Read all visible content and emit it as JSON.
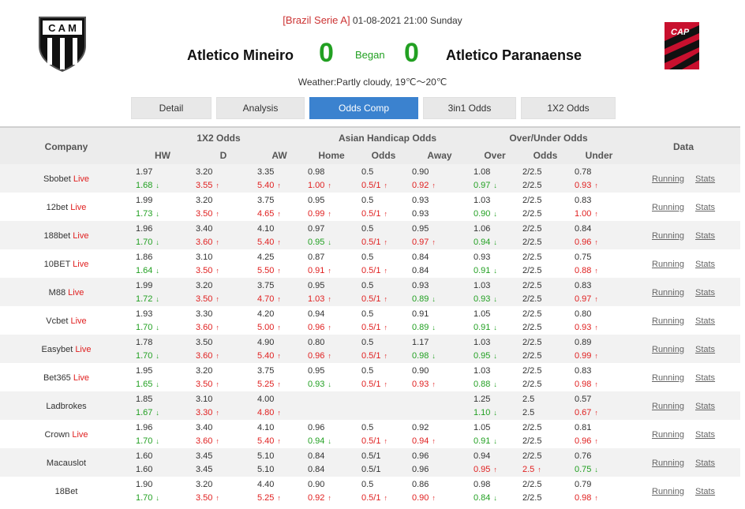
{
  "match": {
    "league": "[Brazil Serie A]",
    "datetime": "01-08-2021 21:00 Sunday",
    "home_team": "Atletico Mineiro",
    "away_team": "Atletico Paranaense",
    "home_score": "0",
    "away_score": "0",
    "status": "Began",
    "weather": "Weather:Partly cloudy, 19℃～20℃",
    "home_logo_text": "C A M",
    "away_logo_text": "CAP"
  },
  "tabs": [
    {
      "label": "Detail",
      "active": false
    },
    {
      "label": "Analysis",
      "active": false
    },
    {
      "label": "Odds Comp",
      "active": true
    },
    {
      "label": "3in1 Odds",
      "active": false
    },
    {
      "label": "1X2 Odds",
      "active": false
    }
  ],
  "table": {
    "company_header": "Company",
    "group_1x2": "1X2 Odds",
    "group_ah": "Asian Handicap Odds",
    "group_ou": "Over/Under Odds",
    "data_header": "Data",
    "sub": {
      "hw": "HW",
      "d": "D",
      "aw": "AW",
      "home": "Home",
      "ah_odds": "Odds",
      "away": "Away",
      "over": "Over",
      "ou_odds": "Odds",
      "under": "Under"
    },
    "running_label": "Running",
    "stats_label": "Stats",
    "live_label": "Live"
  },
  "colors": {
    "up": "#e02020",
    "down": "#22a022",
    "tab_active": "#3b82cf"
  },
  "rows": [
    {
      "company": "Sbobet",
      "live": true,
      "a": [
        "1.97",
        "3.20",
        "3.35",
        "0.98",
        "0.5",
        "0.90",
        "1.08",
        "2/2.5",
        "0.78"
      ],
      "b": [
        [
          "1.68",
          "down"
        ],
        [
          "3.55",
          "up"
        ],
        [
          "5.40",
          "up"
        ],
        [
          "1.00",
          "up"
        ],
        [
          "0.5/1",
          "up"
        ],
        [
          "0.92",
          "up"
        ],
        [
          "0.97",
          "down"
        ],
        [
          "2/2.5",
          ""
        ],
        [
          "0.93",
          "up"
        ]
      ]
    },
    {
      "company": "12bet",
      "live": true,
      "a": [
        "1.99",
        "3.20",
        "3.75",
        "0.95",
        "0.5",
        "0.93",
        "1.03",
        "2/2.5",
        "0.83"
      ],
      "b": [
        [
          "1.73",
          "down"
        ],
        [
          "3.50",
          "up"
        ],
        [
          "4.65",
          "up"
        ],
        [
          "0.99",
          "up"
        ],
        [
          "0.5/1",
          "up"
        ],
        [
          "0.93",
          ""
        ],
        [
          "0.90",
          "down"
        ],
        [
          "2/2.5",
          ""
        ],
        [
          "1.00",
          "up"
        ]
      ]
    },
    {
      "company": "188bet",
      "live": true,
      "a": [
        "1.96",
        "3.40",
        "4.10",
        "0.97",
        "0.5",
        "0.95",
        "1.06",
        "2/2.5",
        "0.84"
      ],
      "b": [
        [
          "1.70",
          "down"
        ],
        [
          "3.60",
          "up"
        ],
        [
          "5.40",
          "up"
        ],
        [
          "0.95",
          "down"
        ],
        [
          "0.5/1",
          "up"
        ],
        [
          "0.97",
          "up"
        ],
        [
          "0.94",
          "down"
        ],
        [
          "2/2.5",
          ""
        ],
        [
          "0.96",
          "up"
        ]
      ]
    },
    {
      "company": "10BET",
      "live": true,
      "a": [
        "1.86",
        "3.10",
        "4.25",
        "0.87",
        "0.5",
        "0.84",
        "0.93",
        "2/2.5",
        "0.75"
      ],
      "b": [
        [
          "1.64",
          "down"
        ],
        [
          "3.50",
          "up"
        ],
        [
          "5.50",
          "up"
        ],
        [
          "0.91",
          "up"
        ],
        [
          "0.5/1",
          "up"
        ],
        [
          "0.84",
          ""
        ],
        [
          "0.91",
          "down"
        ],
        [
          "2/2.5",
          ""
        ],
        [
          "0.88",
          "up"
        ]
      ]
    },
    {
      "company": "M88",
      "live": true,
      "a": [
        "1.99",
        "3.20",
        "3.75",
        "0.95",
        "0.5",
        "0.93",
        "1.03",
        "2/2.5",
        "0.83"
      ],
      "b": [
        [
          "1.72",
          "down"
        ],
        [
          "3.50",
          "up"
        ],
        [
          "4.70",
          "up"
        ],
        [
          "1.03",
          "up"
        ],
        [
          "0.5/1",
          "up"
        ],
        [
          "0.89",
          "down"
        ],
        [
          "0.93",
          "down"
        ],
        [
          "2/2.5",
          ""
        ],
        [
          "0.97",
          "up"
        ]
      ]
    },
    {
      "company": "Vcbet",
      "live": true,
      "a": [
        "1.93",
        "3.30",
        "4.20",
        "0.94",
        "0.5",
        "0.91",
        "1.05",
        "2/2.5",
        "0.80"
      ],
      "b": [
        [
          "1.70",
          "down"
        ],
        [
          "3.60",
          "up"
        ],
        [
          "5.00",
          "up"
        ],
        [
          "0.96",
          "up"
        ],
        [
          "0.5/1",
          "up"
        ],
        [
          "0.89",
          "down"
        ],
        [
          "0.91",
          "down"
        ],
        [
          "2/2.5",
          ""
        ],
        [
          "0.93",
          "up"
        ]
      ]
    },
    {
      "company": "Easybet",
      "live": true,
      "a": [
        "1.78",
        "3.50",
        "4.90",
        "0.80",
        "0.5",
        "1.17",
        "1.03",
        "2/2.5",
        "0.89"
      ],
      "b": [
        [
          "1.70",
          "down"
        ],
        [
          "3.60",
          "up"
        ],
        [
          "5.40",
          "up"
        ],
        [
          "0.96",
          "up"
        ],
        [
          "0.5/1",
          "up"
        ],
        [
          "0.98",
          "down"
        ],
        [
          "0.95",
          "down"
        ],
        [
          "2/2.5",
          ""
        ],
        [
          "0.99",
          "up"
        ]
      ]
    },
    {
      "company": "Bet365",
      "live": true,
      "a": [
        "1.95",
        "3.20",
        "3.75",
        "0.95",
        "0.5",
        "0.90",
        "1.03",
        "2/2.5",
        "0.83"
      ],
      "b": [
        [
          "1.65",
          "down"
        ],
        [
          "3.50",
          "up"
        ],
        [
          "5.25",
          "up"
        ],
        [
          "0.93",
          "down"
        ],
        [
          "0.5/1",
          "up"
        ],
        [
          "0.93",
          "up"
        ],
        [
          "0.88",
          "down"
        ],
        [
          "2/2.5",
          ""
        ],
        [
          "0.98",
          "up"
        ]
      ]
    },
    {
      "company": "Ladbrokes",
      "live": false,
      "a": [
        "1.85",
        "3.10",
        "4.00",
        "",
        "",
        "",
        "1.25",
        "2.5",
        "0.57"
      ],
      "b": [
        [
          "1.67",
          "down"
        ],
        [
          "3.30",
          "up"
        ],
        [
          "4.80",
          "up"
        ],
        [
          "",
          ""
        ],
        [
          "",
          ""
        ],
        [
          "",
          ""
        ],
        [
          "1.10",
          "down"
        ],
        [
          "2.5",
          ""
        ],
        [
          "0.67",
          "up"
        ]
      ]
    },
    {
      "company": "Crown",
      "live": true,
      "a": [
        "1.96",
        "3.40",
        "4.10",
        "0.96",
        "0.5",
        "0.92",
        "1.05",
        "2/2.5",
        "0.81"
      ],
      "b": [
        [
          "1.70",
          "down"
        ],
        [
          "3.60",
          "up"
        ],
        [
          "5.40",
          "up"
        ],
        [
          "0.94",
          "down"
        ],
        [
          "0.5/1",
          "up"
        ],
        [
          "0.94",
          "up"
        ],
        [
          "0.91",
          "down"
        ],
        [
          "2/2.5",
          ""
        ],
        [
          "0.96",
          "up"
        ]
      ]
    },
    {
      "company": "Macauslot",
      "live": false,
      "a": [
        "1.60",
        "3.45",
        "5.10",
        "0.84",
        "0.5/1",
        "0.96",
        "0.94",
        "2/2.5",
        "0.76"
      ],
      "b": [
        [
          "1.60",
          ""
        ],
        [
          "3.45",
          ""
        ],
        [
          "5.10",
          ""
        ],
        [
          "0.84",
          ""
        ],
        [
          "0.5/1",
          ""
        ],
        [
          "0.96",
          ""
        ],
        [
          "0.95",
          "up"
        ],
        [
          "2.5",
          "up"
        ],
        [
          "0.75",
          "down"
        ]
      ]
    },
    {
      "company": "18Bet",
      "live": false,
      "a": [
        "1.90",
        "3.20",
        "4.40",
        "0.90",
        "0.5",
        "0.86",
        "0.98",
        "2/2.5",
        "0.79"
      ],
      "b": [
        [
          "1.70",
          "down"
        ],
        [
          "3.50",
          "up"
        ],
        [
          "5.25",
          "up"
        ],
        [
          "0.92",
          "up"
        ],
        [
          "0.5/1",
          "up"
        ],
        [
          "0.90",
          "up"
        ],
        [
          "0.84",
          "down"
        ],
        [
          "2/2.5",
          ""
        ],
        [
          "0.98",
          "up"
        ]
      ]
    }
  ]
}
